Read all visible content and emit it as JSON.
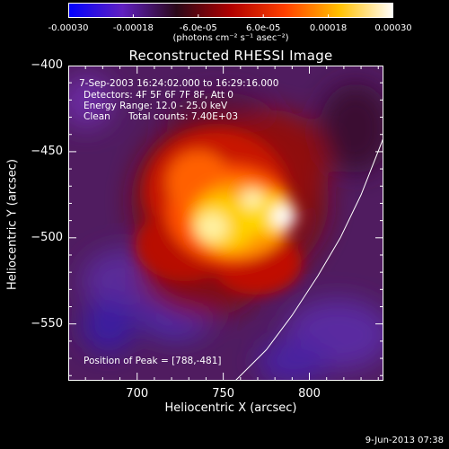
{
  "colorbar": {
    "ticks": [
      "-0.00030",
      "-0.00018",
      "-6.0e-05",
      "6.0e-05",
      "0.00018",
      "0.00030"
    ],
    "range": [
      -0.0003,
      0.0003
    ],
    "unit_label": "(photons cm⁻² s⁻¹ asec⁻²)",
    "colors": [
      "#0000ff",
      "#6020c0",
      "#2a0818",
      "#b00000",
      "#ff4000",
      "#ffc000",
      "#ffffff"
    ]
  },
  "chart_data": {
    "type": "heatmap",
    "title": "Reconstructed RHESSI Image",
    "xlabel": "Heliocentric X (arcsec)",
    "ylabel": "Heliocentric Y (arcsec)",
    "xlim": [
      660,
      843
    ],
    "ylim": [
      -583,
      -400
    ],
    "x_ticks": [
      700,
      750,
      800
    ],
    "y_ticks": [
      -400,
      -450,
      -500,
      -550
    ],
    "x_tick_labels": [
      "700",
      "750",
      "800"
    ],
    "y_tick_labels": [
      "−400",
      "−450",
      "−500",
      "−550"
    ],
    "peak": {
      "x": 788,
      "y": -481
    },
    "limb_curve": [
      [
        757,
        -583
      ],
      [
        775,
        -565
      ],
      [
        790,
        -545
      ],
      [
        805,
        -522
      ],
      [
        818,
        -500
      ],
      [
        830,
        -475
      ],
      [
        843,
        -442
      ]
    ],
    "annotations": {
      "time": "7-Sep-2003 16:24:02.000 to 16:29:16.000",
      "detectors": "Detectors: 4F 5F 6F 7F 8F, Att 0",
      "energy": "Energy Range: 12.0 - 25.0 keV",
      "clean_label": "Clean",
      "counts": "Total counts: 7.40E+03",
      "peak_text": "Position of Peak = [788,-481]"
    }
  },
  "footer": {
    "timestamp": "9-Jun-2013 07:38"
  }
}
